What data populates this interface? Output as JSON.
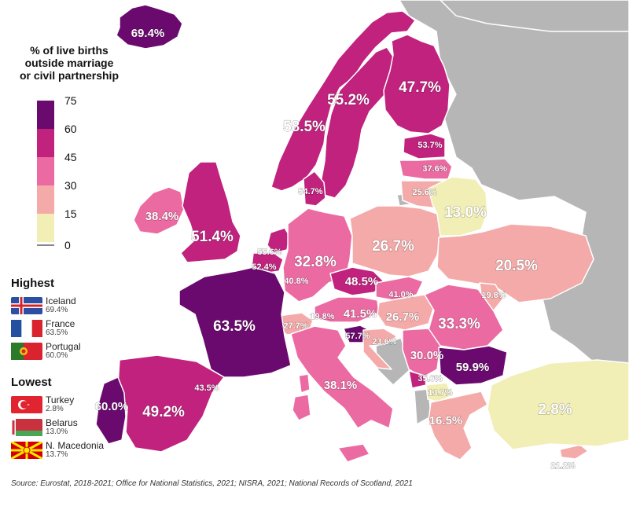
{
  "legend": {
    "title_lines": [
      "% of live births",
      "outside marriage",
      "or civil partnership"
    ],
    "ticks": [
      "75",
      "60",
      "45",
      "30",
      "15",
      "0"
    ],
    "bins": [
      {
        "color": "#6b0a6e"
      },
      {
        "color": "#c0227e"
      },
      {
        "color": "#ec6aa2"
      },
      {
        "color": "#f4aaa8"
      },
      {
        "color": "#f1eeb6"
      }
    ]
  },
  "colors": {
    "sea": "#ffffff",
    "non_data_land": "#b6b6b6",
    "border": "#ffffff"
  },
  "highest": {
    "heading": "Highest",
    "items": [
      {
        "name": "Iceland",
        "value": "69.4%",
        "flag": "iceland-flag"
      },
      {
        "name": "France",
        "value": "63.5%",
        "flag": "france-flag"
      },
      {
        "name": "Portugal",
        "value": "60.0%",
        "flag": "portugal-flag"
      }
    ]
  },
  "lowest": {
    "heading": "Lowest",
    "items": [
      {
        "name": "Turkey",
        "value": "2.8%",
        "flag": "turkey-flag"
      },
      {
        "name": "Belarus",
        "value": "13.0%",
        "flag": "belarus-flag"
      },
      {
        "name": "N. Macedonia",
        "value": "13.7%",
        "flag": "north-macedonia-flag"
      }
    ]
  },
  "source": "Source: Eurostat, 2018-2021; Office for National Statistics, 2021; NISRA, 2021; National Records of Scotland, 2021",
  "map_labels": {
    "iceland": "69.4%",
    "norway": "55.2%",
    "sweden": "58.5%",
    "finland": "47.7%",
    "estonia": "53.7%",
    "latvia": "37.6%",
    "lithuania": "25.6%",
    "denmark": "54.7%",
    "ireland": "38.4%",
    "uk": "51.4%",
    "netherlands": "55.6%",
    "belgium": "52.4%",
    "luxembourg": "40.8%",
    "germany": "32.8%",
    "poland": "26.7%",
    "belarus": "13.0%",
    "ukraine": "20.5%",
    "czechia": "48.5%",
    "slovakia": "41.0%",
    "moldova": "19.8%",
    "austria": "41.5%",
    "liechtenstein": "19.8%",
    "switzerland": "27.7%",
    "hungary": "26.7%",
    "romania": "33.3%",
    "slovenia": "57.7%",
    "croatia": "23.6%",
    "serbia": "30.0%",
    "bulgaria": "59.9%",
    "montenegro": "35.6%",
    "north_macedonia": "13.7%",
    "greece": "16.5%",
    "cyprus": "21.2%",
    "turkey": "2.8%",
    "france": "63.5%",
    "spain": "49.2%",
    "portugal": "60.0%",
    "andorra": "43.5%",
    "italy": "38.1%"
  }
}
